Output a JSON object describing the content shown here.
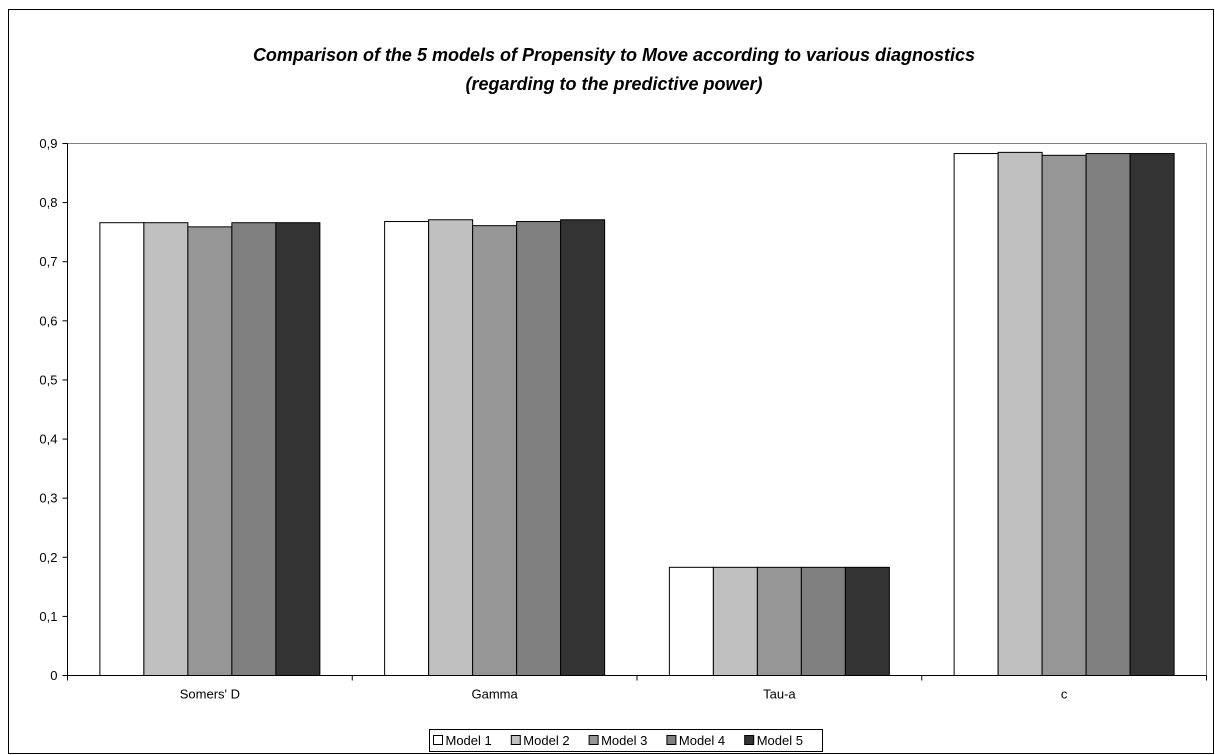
{
  "chart_data": {
    "type": "bar",
    "title": [
      "Comparison of the 5 models of Propensity to Move according to various diagnostics",
      "(regarding to the predictive power)"
    ],
    "xlabel": "",
    "ylabel": "",
    "categories": [
      "Somers' D",
      "Gamma",
      "Tau-a",
      "c"
    ],
    "series": [
      {
        "name": "Model 1",
        "color": "#ffffff",
        "values": [
          0.766,
          0.768,
          0.183,
          0.883
        ]
      },
      {
        "name": "Model 2",
        "color": "#c0c0c0",
        "values": [
          0.766,
          0.771,
          0.183,
          0.885
        ]
      },
      {
        "name": "Model 3",
        "color": "#969696",
        "values": [
          0.759,
          0.761,
          0.183,
          0.88
        ]
      },
      {
        "name": "Model 4",
        "color": "#808080",
        "values": [
          0.766,
          0.768,
          0.183,
          0.883
        ]
      },
      {
        "name": "Model 5",
        "color": "#333333",
        "values": [
          0.766,
          0.771,
          0.183,
          0.883
        ]
      }
    ],
    "ylim": [
      0,
      0.9
    ],
    "yticks": [
      "0",
      "0,1",
      "0,2",
      "0,3",
      "0,4",
      "0,5",
      "0,6",
      "0,7",
      "0,8",
      "0,9"
    ],
    "grid": false,
    "legend_position": "bottom"
  }
}
